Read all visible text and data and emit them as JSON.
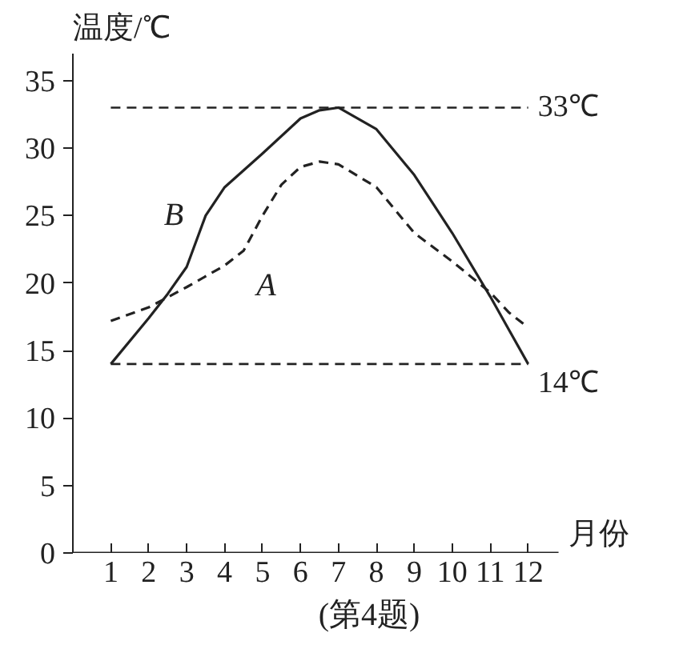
{
  "chart_data": {
    "type": "line",
    "ylabel": "温度/℃",
    "xlabel": "月份",
    "annotations": [
      "(第4题)"
    ],
    "x": [
      1,
      2,
      2.5,
      3,
      3.5,
      4,
      5,
      6,
      6.5,
      7,
      8,
      9,
      10,
      11,
      11.5,
      12
    ],
    "series": [
      {
        "name": "B",
        "color": "#222222",
        "line_style": "solid",
        "values": [
          14,
          17.4,
          19.2,
          21.2,
          25,
          27.1,
          29.6,
          32.2,
          32.8,
          33,
          31.4,
          28,
          23.7,
          19,
          16.5,
          14
        ]
      },
      {
        "name": "A",
        "color": "#222222",
        "line_style": "dashed",
        "x": [
          1,
          2,
          3,
          4,
          4.5,
          5,
          5.5,
          6,
          6.5,
          7,
          8,
          9,
          10,
          11,
          11.5,
          12
        ],
        "values": [
          17.2,
          18.2,
          19.7,
          21.3,
          22.4,
          25,
          27.3,
          28.6,
          29,
          28.8,
          27.1,
          23.7,
          21.6,
          19.3,
          17.8,
          16.7
        ]
      }
    ],
    "ref_lines": [
      {
        "axis": "y",
        "value": 33,
        "label": "33℃",
        "line_style": "dashed"
      },
      {
        "axis": "y",
        "value": 14,
        "label": "14℃",
        "line_style": "dashed"
      }
    ],
    "xlim": [
      0,
      12.8
    ],
    "ylim": [
      0,
      37
    ],
    "xticks": [
      1,
      2,
      3,
      4,
      5,
      6,
      7,
      8,
      9,
      10,
      11,
      12
    ],
    "yticks": [
      0,
      5,
      10,
      15,
      20,
      25,
      30,
      35
    ],
    "grid": false,
    "marker": "none"
  }
}
